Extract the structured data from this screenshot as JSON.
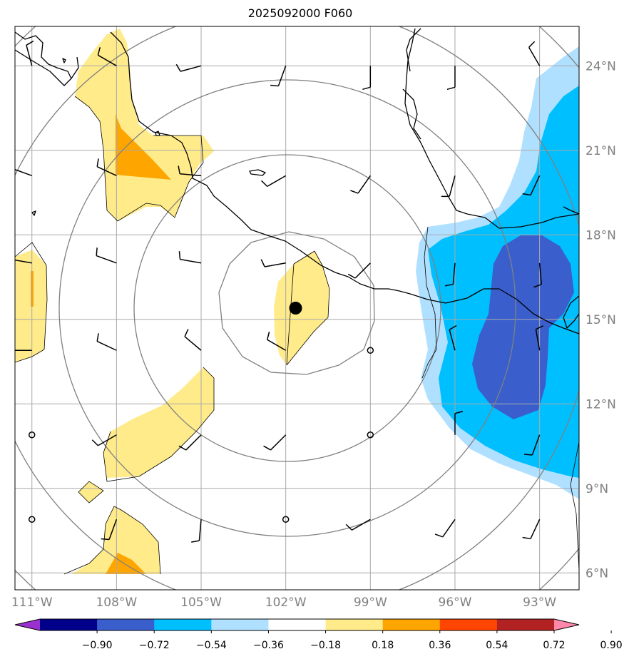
{
  "title": "2025092000 F060",
  "lon_ticks": [
    {
      "lon": -111,
      "label": "111°W"
    },
    {
      "lon": -108,
      "label": "108°W"
    },
    {
      "lon": -105,
      "label": "105°W"
    },
    {
      "lon": -102,
      "label": "102°W"
    },
    {
      "lon": -99,
      "label": "99°W"
    },
    {
      "lon": -96,
      "label": "96°W"
    },
    {
      "lon": -93,
      "label": "93°W"
    }
  ],
  "lat_ticks": [
    {
      "lat": 6,
      "label": "6°N"
    },
    {
      "lat": 9,
      "label": "9°N"
    },
    {
      "lat": 12,
      "label": "12°N"
    },
    {
      "lat": 15,
      "label": "15°N"
    },
    {
      "lat": 18,
      "label": "18°N"
    },
    {
      "lat": 21,
      "label": "21°N"
    },
    {
      "lat": 24,
      "label": "24°N"
    }
  ],
  "extent": {
    "lon_min": -111.6,
    "lon_max": -91.6,
    "lat_min": 5.4,
    "lat_max": 25.4
  },
  "storm_center": {
    "lon": -101.65,
    "lat": 15.4
  },
  "colorbar": {
    "levels": [
      "−0.90",
      "−0.72",
      "−0.54",
      "−0.36",
      "−0.18",
      "0.18",
      "0.36",
      "0.54",
      "0.72",
      "0.90"
    ],
    "colors": [
      "#9b30d0",
      "#00008b",
      "#3a5fcd",
      "#00bfff",
      "#b0e0ff",
      "#ffffff",
      "#ffeb8a",
      "#ffa500",
      "#ff4500",
      "#b22222",
      "#ff88aa"
    ]
  },
  "colors": {
    "dark_blue": "#3a5fcd",
    "blue": "#00bfff",
    "light_blue": "#b0e0ff",
    "yellow": "#ffeb8a",
    "orange": "#ffa500",
    "grid": "#a9a9a9",
    "range_rings": "#808080"
  },
  "wind_barbs": [
    {
      "lon": -111,
      "lat": 24,
      "dir": 345,
      "kt": 5
    },
    {
      "lon": -108,
      "lat": 24,
      "dir": 300,
      "kt": 5
    },
    {
      "lon": -105,
      "lat": 24,
      "dir": 255,
      "kt": 5
    },
    {
      "lon": -102,
      "lat": 24,
      "dir": 200,
      "kt": 5
    },
    {
      "lon": -99,
      "lat": 24,
      "dir": 180,
      "kt": 5
    },
    {
      "lon": -96,
      "lat": 24,
      "dir": 180,
      "kt": 5
    },
    {
      "lon": -93,
      "lat": 24,
      "dir": 330,
      "kt": 5
    },
    {
      "lon": -111,
      "lat": 20.1,
      "dir": 290,
      "kt": 5
    },
    {
      "lon": -108,
      "lat": 20.1,
      "dir": 295,
      "kt": 5
    },
    {
      "lon": -105,
      "lat": 20.1,
      "dir": 275,
      "kt": 5
    },
    {
      "lon": -102,
      "lat": 20.1,
      "dir": 240,
      "kt": 5
    },
    {
      "lon": -99,
      "lat": 20.1,
      "dir": 215,
      "kt": 5
    },
    {
      "lon": -96,
      "lat": 20.1,
      "dir": 195,
      "kt": 5
    },
    {
      "lon": -93,
      "lat": 20.1,
      "dir": 205,
      "kt": 5
    },
    {
      "lon": -111,
      "lat": 17,
      "dir": 280,
      "kt": 5
    },
    {
      "lon": -108,
      "lat": 17,
      "dir": 290,
      "kt": 5
    },
    {
      "lon": -105,
      "lat": 17,
      "dir": 280,
      "kt": 5
    },
    {
      "lon": -102,
      "lat": 17,
      "dir": 260,
      "kt": 5
    },
    {
      "lon": -99,
      "lat": 17,
      "dir": 225,
      "kt": 5
    },
    {
      "lon": -96,
      "lat": 17,
      "dir": 185,
      "kt": 5
    },
    {
      "lon": -93,
      "lat": 17,
      "dir": 175,
      "kt": 5
    },
    {
      "lon": -111,
      "lat": 13.9,
      "dir": 270,
      "kt": 5
    },
    {
      "lon": -108,
      "lat": 13.9,
      "dir": 295,
      "kt": 5
    },
    {
      "lon": -105,
      "lat": 13.9,
      "dir": 310,
      "kt": 5
    },
    {
      "lon": -102,
      "lat": 13.9,
      "dir": 300,
      "kt": 5
    },
    {
      "lon": -99,
      "lat": 13.9,
      "dir": 0,
      "kt": 0
    },
    {
      "lon": -96,
      "lat": 13.9,
      "dir": 345,
      "kt": 5
    },
    {
      "lon": -93,
      "lat": 13.9,
      "dir": 350,
      "kt": 5
    },
    {
      "lon": -111,
      "lat": 10.9,
      "dir": 0,
      "kt": 0
    },
    {
      "lon": -108,
      "lat": 10.9,
      "dir": 240,
      "kt": 5
    },
    {
      "lon": -105,
      "lat": 10.9,
      "dir": 225,
      "kt": 5
    },
    {
      "lon": -102,
      "lat": 10.9,
      "dir": 225,
      "kt": 5
    },
    {
      "lon": -99,
      "lat": 10.9,
      "dir": 0,
      "kt": 0
    },
    {
      "lon": -96,
      "lat": 10.9,
      "dir": 0,
      "kt": 5
    },
    {
      "lon": -93,
      "lat": 10.9,
      "dir": 200,
      "kt": 5
    },
    {
      "lon": -111,
      "lat": 7.9,
      "dir": 0,
      "kt": 0
    },
    {
      "lon": -108,
      "lat": 7.9,
      "dir": 200,
      "kt": 5
    },
    {
      "lon": -105,
      "lat": 7.9,
      "dir": 185,
      "kt": 5
    },
    {
      "lon": -102,
      "lat": 7.9,
      "dir": 0,
      "kt": 0
    },
    {
      "lon": -99,
      "lat": 7.9,
      "dir": 240,
      "kt": 5
    },
    {
      "lon": -96,
      "lat": 7.9,
      "dir": 215,
      "kt": 5
    },
    {
      "lon": -93,
      "lat": 7.9,
      "dir": 205,
      "kt": 5
    }
  ]
}
